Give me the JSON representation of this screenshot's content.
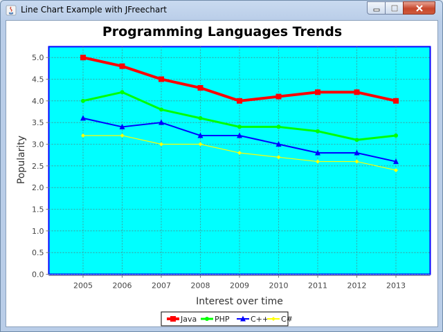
{
  "window": {
    "title": "Line Chart Example with JFreechart",
    "controls": [
      "minimize",
      "maximize",
      "close"
    ]
  },
  "chart_data": {
    "type": "line",
    "title": "Programming Languages Trends",
    "xlabel": "Interest over time",
    "ylabel": "Popularity",
    "categories": [
      "2005",
      "2006",
      "2007",
      "2008",
      "2009",
      "2010",
      "2011",
      "2012",
      "2013"
    ],
    "ylim": [
      0,
      5.25
    ],
    "yticks": [
      "0.0",
      "0.5",
      "1.0",
      "1.5",
      "2.0",
      "2.5",
      "3.0",
      "3.5",
      "4.0",
      "4.5",
      "5.0"
    ],
    "grid": true,
    "legend_position": "bottom",
    "plot_background": "#00ffff",
    "series": [
      {
        "name": "Java",
        "color": "#ff0000",
        "marker": "square",
        "values": [
          5.0,
          4.8,
          4.5,
          4.3,
          4.0,
          4.1,
          4.2,
          4.2,
          4.0
        ]
      },
      {
        "name": "PHP",
        "color": "#00ff00",
        "marker": "circle",
        "values": [
          4.0,
          4.2,
          3.8,
          3.6,
          3.4,
          3.4,
          3.3,
          3.1,
          3.2
        ]
      },
      {
        "name": "C++",
        "color": "#0000ff",
        "marker": "triangle",
        "values": [
          3.6,
          3.4,
          3.5,
          3.2,
          3.2,
          3.0,
          2.8,
          2.8,
          2.6
        ]
      },
      {
        "name": "C#",
        "color": "#ffff00",
        "marker": "diamond",
        "values": [
          3.2,
          3.2,
          3.0,
          3.0,
          2.8,
          2.7,
          2.6,
          2.6,
          2.4
        ]
      }
    ]
  }
}
